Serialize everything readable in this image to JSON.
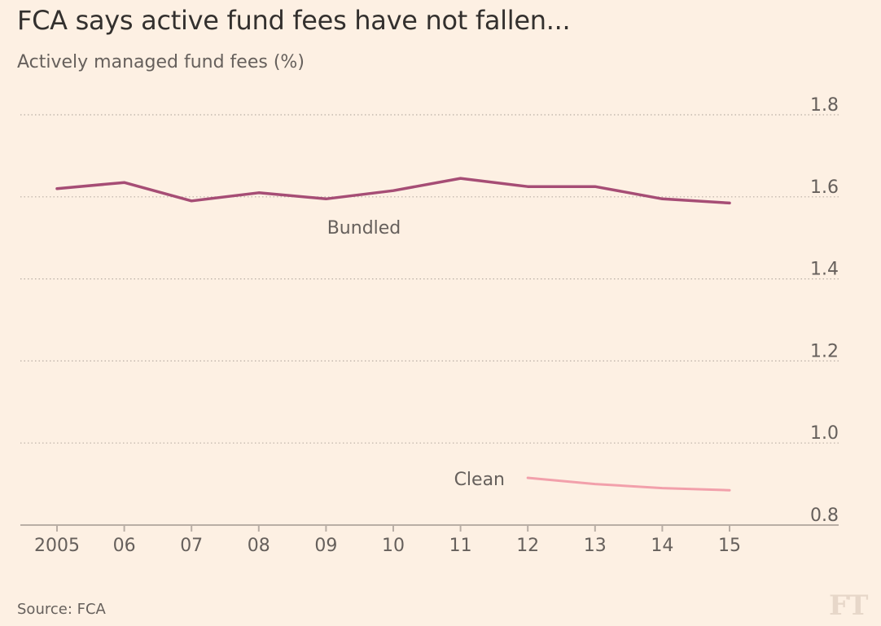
{
  "chart_data": {
    "type": "line",
    "title": "FCA says active fund fees have not fallen...",
    "subtitle": "Actively managed fund fees (%)",
    "x_tick_labels": [
      "2005",
      "06",
      "07",
      "08",
      "09",
      "10",
      "11",
      "12",
      "13",
      "14",
      "15"
    ],
    "x": [
      2005,
      2006,
      2007,
      2008,
      2009,
      2010,
      2011,
      2012,
      2013,
      2014,
      2015
    ],
    "ylim": [
      0.8,
      1.8
    ],
    "y_ticks": [
      "1.8",
      "1.6",
      "1.4",
      "1.2",
      "1.0",
      "0.8"
    ],
    "y_axis_position": "right",
    "grid": "horizontal dotted",
    "series": [
      {
        "name": "Bundled",
        "color": "#a64d75",
        "x": [
          2005,
          2006,
          2007,
          2008,
          2009,
          2010,
          2011,
          2012,
          2013,
          2014,
          2015
        ],
        "values": [
          1.62,
          1.635,
          1.59,
          1.61,
          1.595,
          1.615,
          1.645,
          1.625,
          1.625,
          1.595,
          1.585
        ]
      },
      {
        "name": "Clean",
        "color": "#f2a0ab",
        "x": [
          2012,
          2013,
          2014,
          2015
        ],
        "values": [
          0.915,
          0.9,
          0.89,
          0.885
        ]
      }
    ],
    "source": "Source: FCA"
  },
  "logo_text": "FT"
}
